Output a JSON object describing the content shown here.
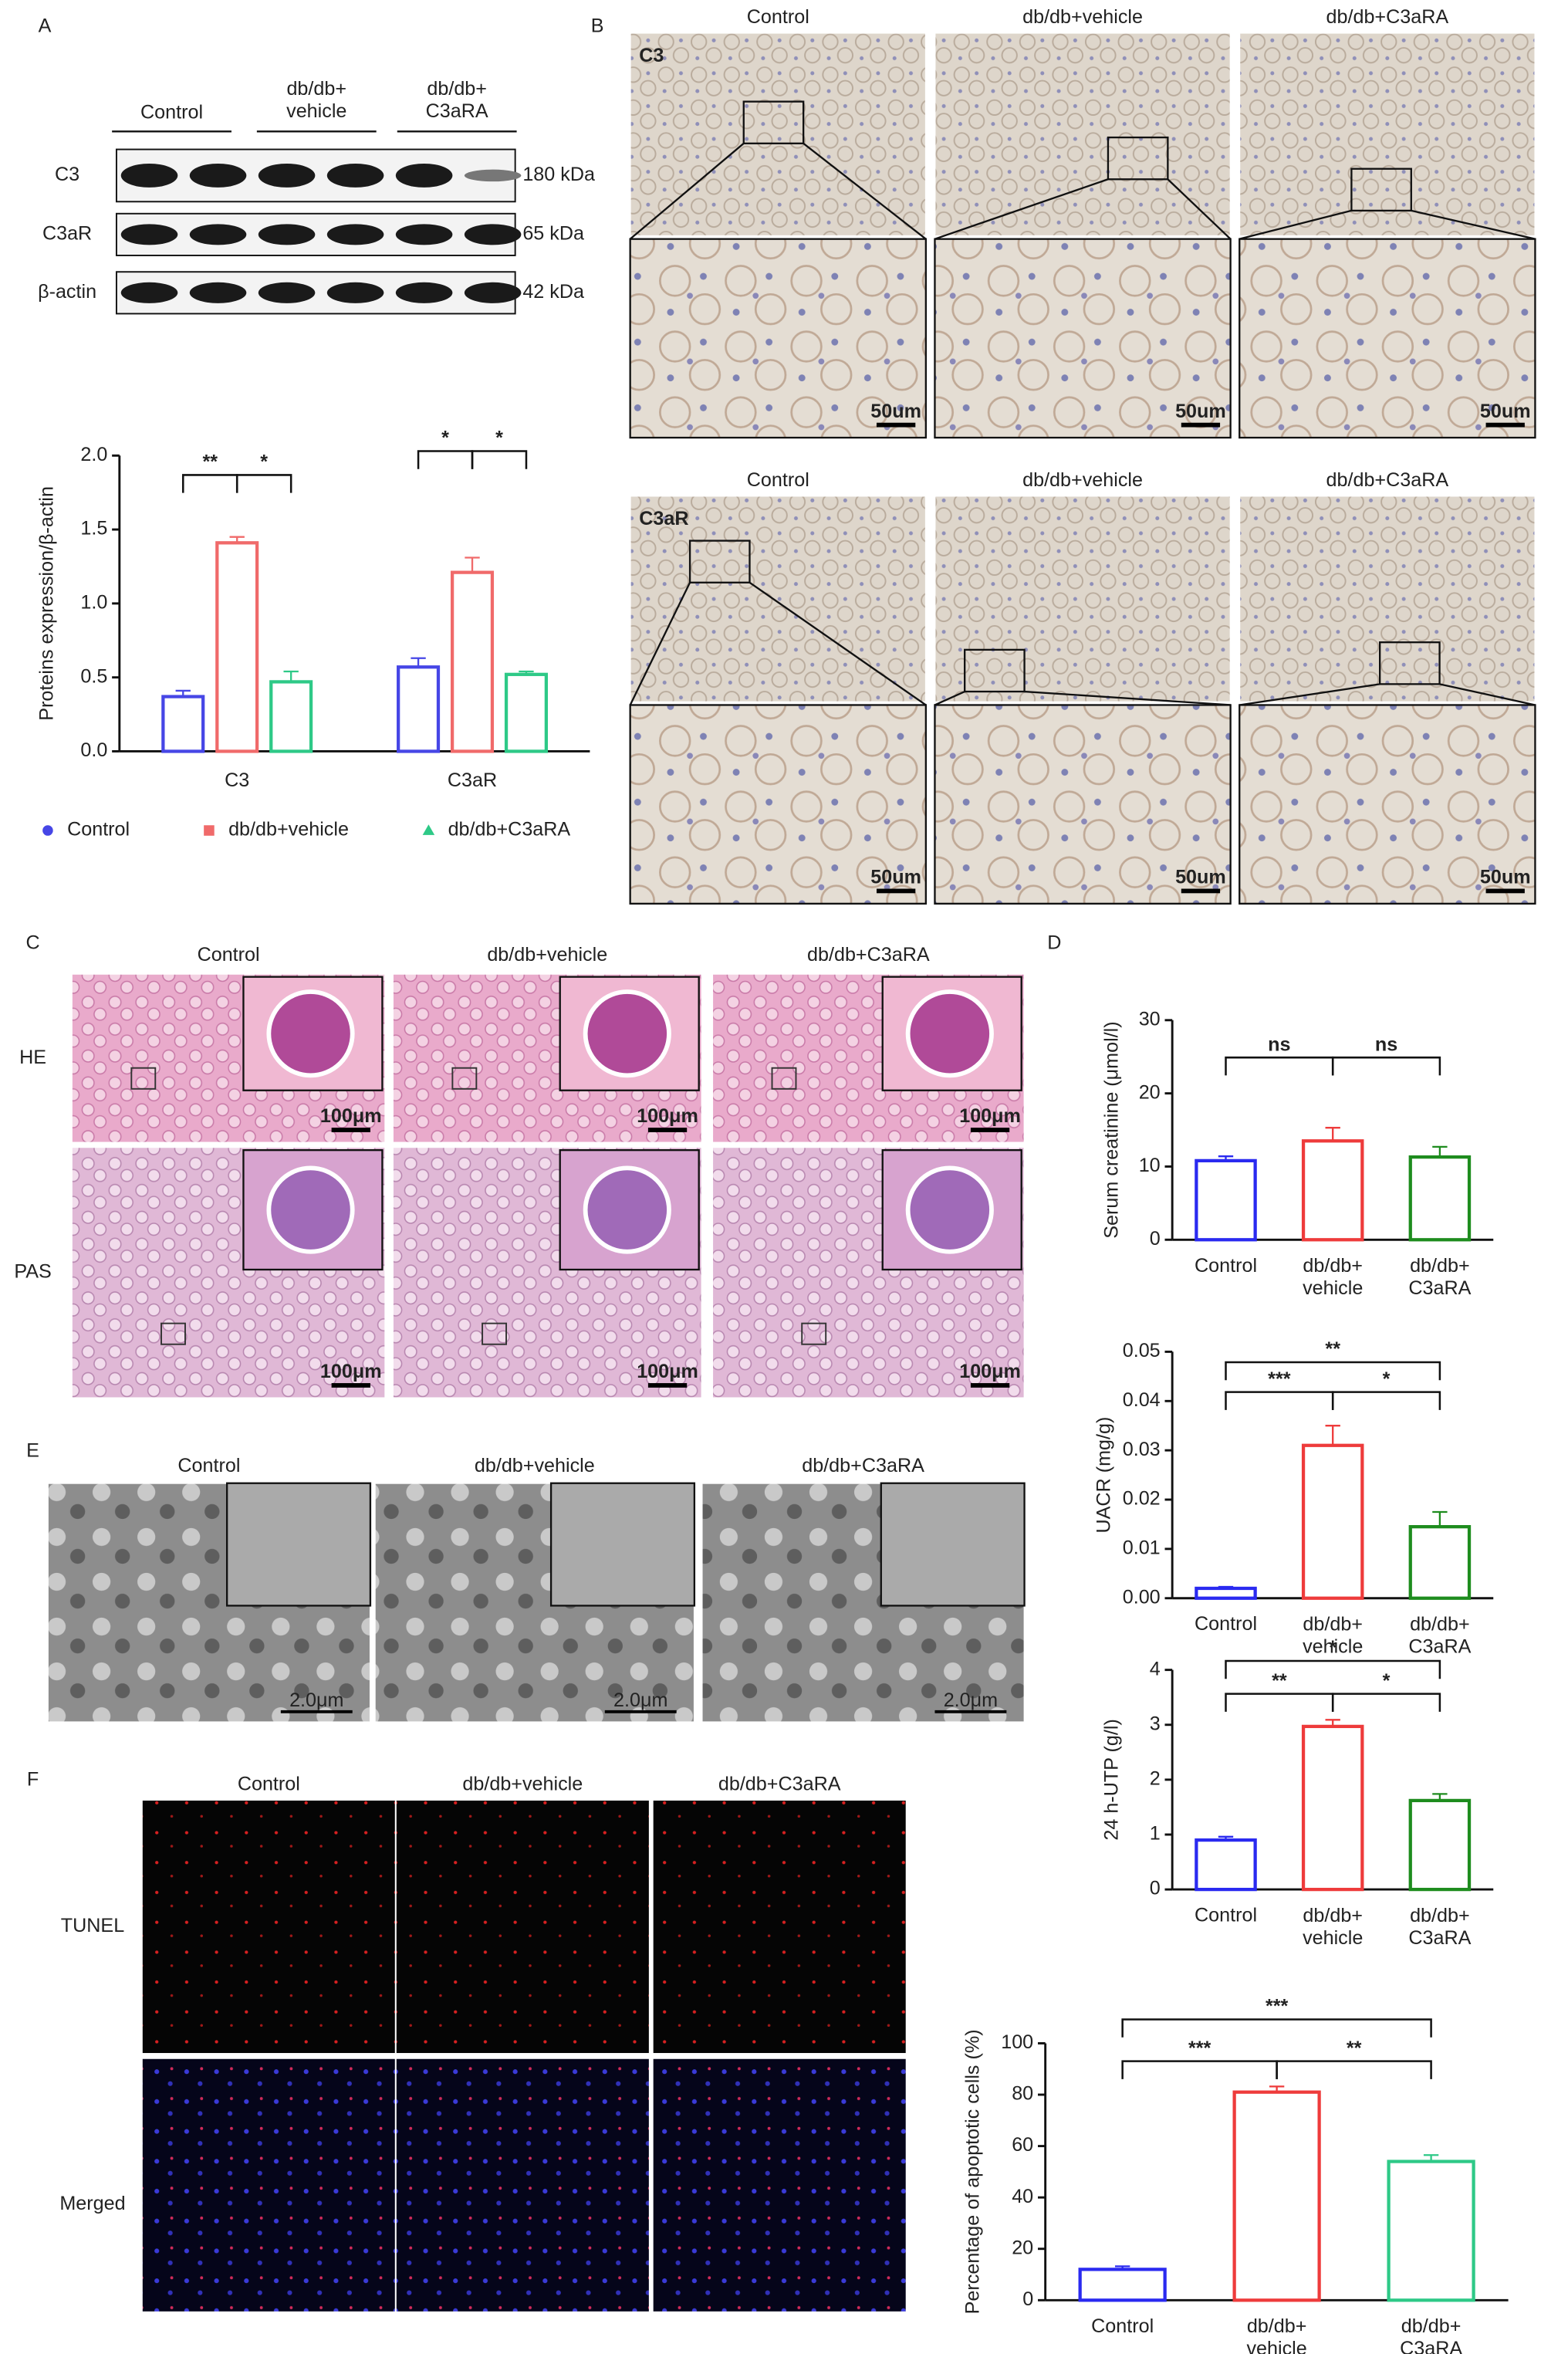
{
  "panel_labels": [
    "A",
    "B",
    "C",
    "D",
    "E",
    "F"
  ],
  "western_blot": {
    "groups": [
      "Control",
      "db/db+\nvehicle",
      "db/db+\nC3aRA"
    ],
    "proteins": [
      "C3",
      "C3aR",
      "β-actin"
    ],
    "sizes": [
      "180 kDa",
      "65 kDa",
      "42 kDa"
    ]
  },
  "ihc": {
    "columns": [
      "Control",
      "db/db+vehicle",
      "db/db+C3aRA"
    ],
    "rows": [
      "C3",
      "C3aR"
    ],
    "scale_bar": "50um"
  },
  "histology": {
    "columns": [
      "Control",
      "db/db+vehicle",
      "db/db+C3aRA"
    ],
    "rows": [
      "HE",
      "PAS"
    ],
    "scale_bar": "100μm"
  },
  "tem": {
    "columns": [
      "Control",
      "db/db+vehicle",
      "db/db+C3aRA"
    ],
    "scale_bar": "2.0μm"
  },
  "tunel": {
    "columns": [
      "Control",
      "db/db+vehicle",
      "db/db+C3aRA"
    ],
    "rows": [
      "TUNEL",
      "Merged"
    ]
  },
  "chart_data": [
    {
      "type": "grouped-bar",
      "y_label": "Proteins expression/β-actin",
      "categories": [
        "C3",
        "C3aR"
      ],
      "series": [
        {
          "name": "Control",
          "color": "#4646e6",
          "values": [
            0.37,
            0.57
          ],
          "errors": [
            0.04,
            0.06
          ]
        },
        {
          "name": "db/db+vehicle",
          "color": "#f06a6a",
          "values": [
            1.41,
            1.21
          ],
          "errors": [
            0.04,
            0.1
          ]
        },
        {
          "name": "db/db+C3aRA",
          "color": "#2ec987",
          "values": [
            0.47,
            0.52
          ],
          "errors": [
            0.07,
            0.02
          ]
        }
      ],
      "ylim": [
        0,
        2
      ],
      "yticks": [
        {
          "value": 0,
          "label": "0.0"
        },
        {
          "value": 0.5,
          "label": "0.5"
        },
        {
          "value": 1,
          "label": "1.0"
        },
        {
          "value": 1.5,
          "label": "1.5"
        },
        {
          "value": 2,
          "label": "2.0"
        }
      ],
      "annotations": [
        "**",
        "*",
        "*",
        "*"
      ],
      "legend": "bottom"
    },
    {
      "type": "bar",
      "y_label": "Serum creatinine (μmol/l)",
      "categories": [
        "Control",
        "db/db+\nvehicle",
        "db/db+\nC3aRA"
      ],
      "values": [
        10.8,
        13.5,
        11.3
      ],
      "errors": [
        0.6,
        1.8,
        1.4
      ],
      "colors": [
        "#2a2af0",
        "#ee3b3b",
        "#1e8c1e"
      ],
      "ylim": [
        0,
        30
      ],
      "yticks": [
        0,
        10,
        20,
        30
      ],
      "annotations": [
        "ns",
        "ns"
      ]
    },
    {
      "type": "bar",
      "y_label": "UACR (mg/g)",
      "categories": [
        "Control",
        "db/db+\nvehicle",
        "db/db+\nC3aRA"
      ],
      "values": [
        0.002,
        0.031,
        0.0145
      ],
      "errors": [
        0.0003,
        0.004,
        0.003
      ],
      "colors": [
        "#2a2af0",
        "#ee3b3b",
        "#1e8c1e"
      ],
      "ylim": [
        0,
        0.05
      ],
      "yticks": [
        {
          "value": 0,
          "label": "0.00"
        },
        {
          "value": 0.01,
          "label": "0.01"
        },
        {
          "value": 0.02,
          "label": "0.02"
        },
        {
          "value": 0.03,
          "label": "0.03"
        },
        {
          "value": 0.04,
          "label": "0.04"
        },
        {
          "value": 0.05,
          "label": "0.05"
        }
      ],
      "annotations": [
        "***",
        "*",
        "**"
      ]
    },
    {
      "type": "bar",
      "y_label": "24 h-UTP (g/l)",
      "categories": [
        "Control",
        "db/db+\nvehicle",
        "db/db+\nC3aRA"
      ],
      "values": [
        0.9,
        2.97,
        1.62
      ],
      "errors": [
        0.06,
        0.12,
        0.12
      ],
      "colors": [
        "#2a2af0",
        "#ee3b3b",
        "#1e8c1e"
      ],
      "ylim": [
        0,
        4
      ],
      "yticks": [
        0,
        1,
        2,
        3,
        4
      ],
      "annotations": [
        "**",
        "*",
        "*"
      ]
    },
    {
      "type": "bar",
      "y_label": "Percentage of apoptotic cells (%)",
      "categories": [
        "Control",
        "db/db+\nvehicle",
        "db/db+\nC3aRA"
      ],
      "values": [
        12,
        81,
        54
      ],
      "errors": [
        1.2,
        2.2,
        2.5
      ],
      "colors": [
        "#2a2af0",
        "#ee3b3b",
        "#2ec987"
      ],
      "ylim": [
        0,
        100
      ],
      "yticks": [
        0,
        20,
        40,
        60,
        80,
        100
      ],
      "annotations": [
        "***",
        "***",
        "**"
      ]
    }
  ]
}
